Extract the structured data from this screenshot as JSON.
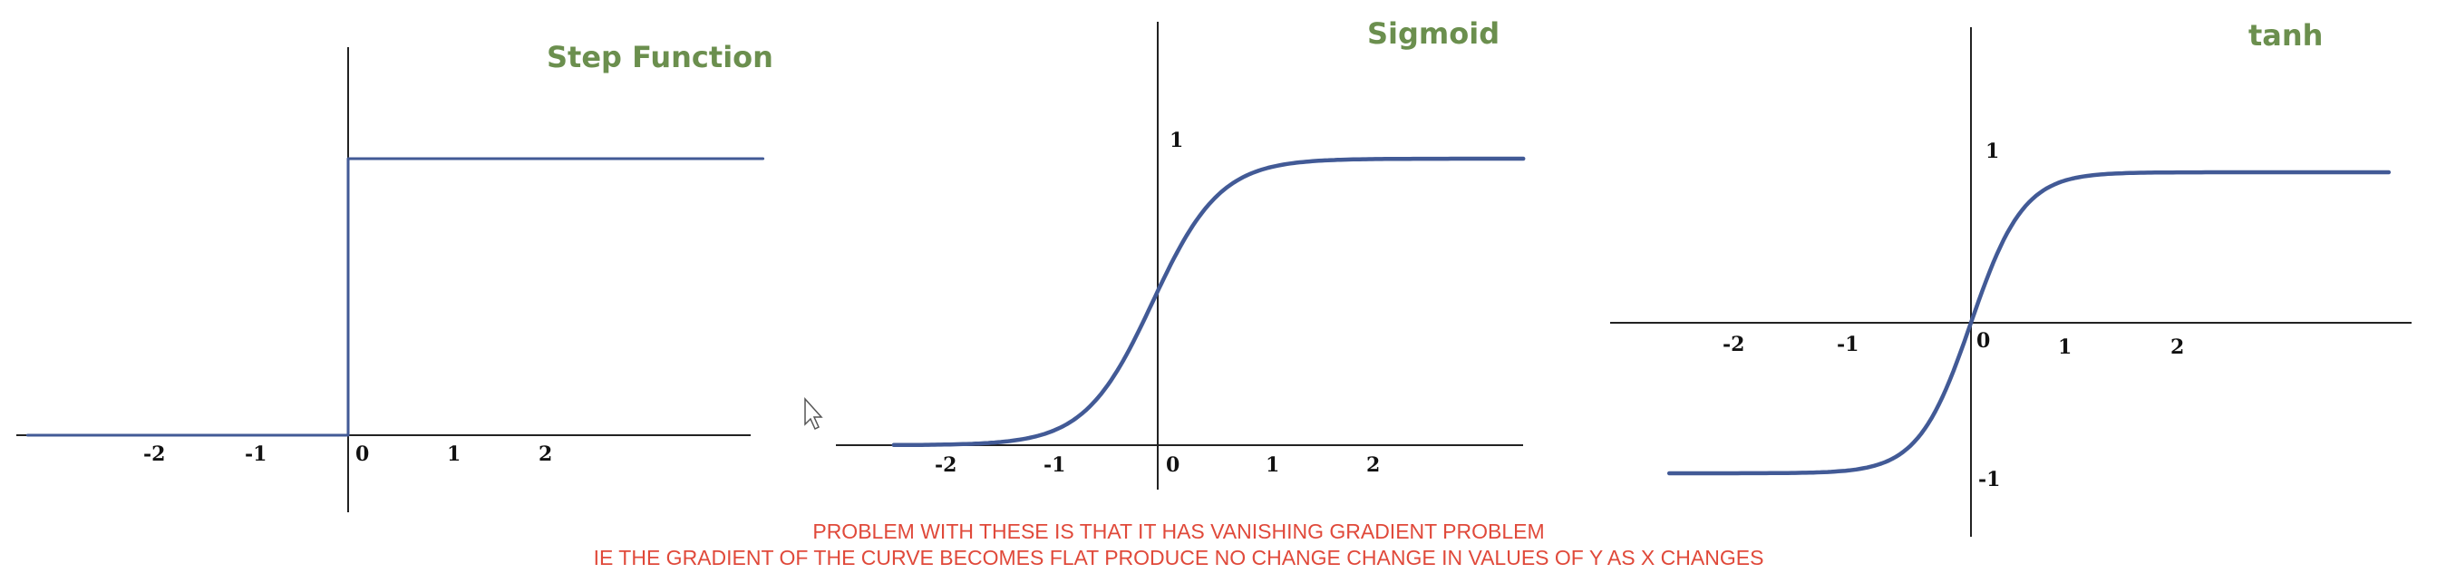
{
  "colors": {
    "title": "#6b8f4e",
    "curve": "#425a96",
    "curve_dark": "#1f2f66",
    "caption": "#e0493a"
  },
  "caption": {
    "line1": "PROBLEM WITH THESE IS THAT IT HAS VANISHING GRADIENT PROBLEM",
    "line2": "IE THE GRADIENT OF THE CURVE BECOMES FLAT PRODUCE NO CHANGE CHANGE IN VALUES OF Y AS X CHANGES"
  },
  "chart_data": [
    {
      "type": "line",
      "title": "Step Function",
      "x_ticks": [
        "-2",
        "-1",
        "0",
        "1",
        "2"
      ],
      "y_ticks": [],
      "series": [
        {
          "x": [
            -3.4,
            0,
            0,
            4.4
          ],
          "y": [
            0,
            0,
            1,
            1
          ]
        }
      ],
      "grid": false
    },
    {
      "type": "line",
      "title": "Sigmoid",
      "x_ticks": [
        "-2",
        "-1",
        "0",
        "1",
        "2"
      ],
      "y_ticks": [
        "1"
      ],
      "function": "sigmoid",
      "x_range": [
        -2.6,
        3.6
      ],
      "grid": false
    },
    {
      "type": "line",
      "title": "tanh",
      "x_ticks": [
        "-2",
        "-1",
        "0",
        "1",
        "2"
      ],
      "y_ticks": [
        "1",
        "-1"
      ],
      "function": "tanh",
      "x_range": [
        -2.6,
        3.6
      ],
      "grid": false
    }
  ]
}
